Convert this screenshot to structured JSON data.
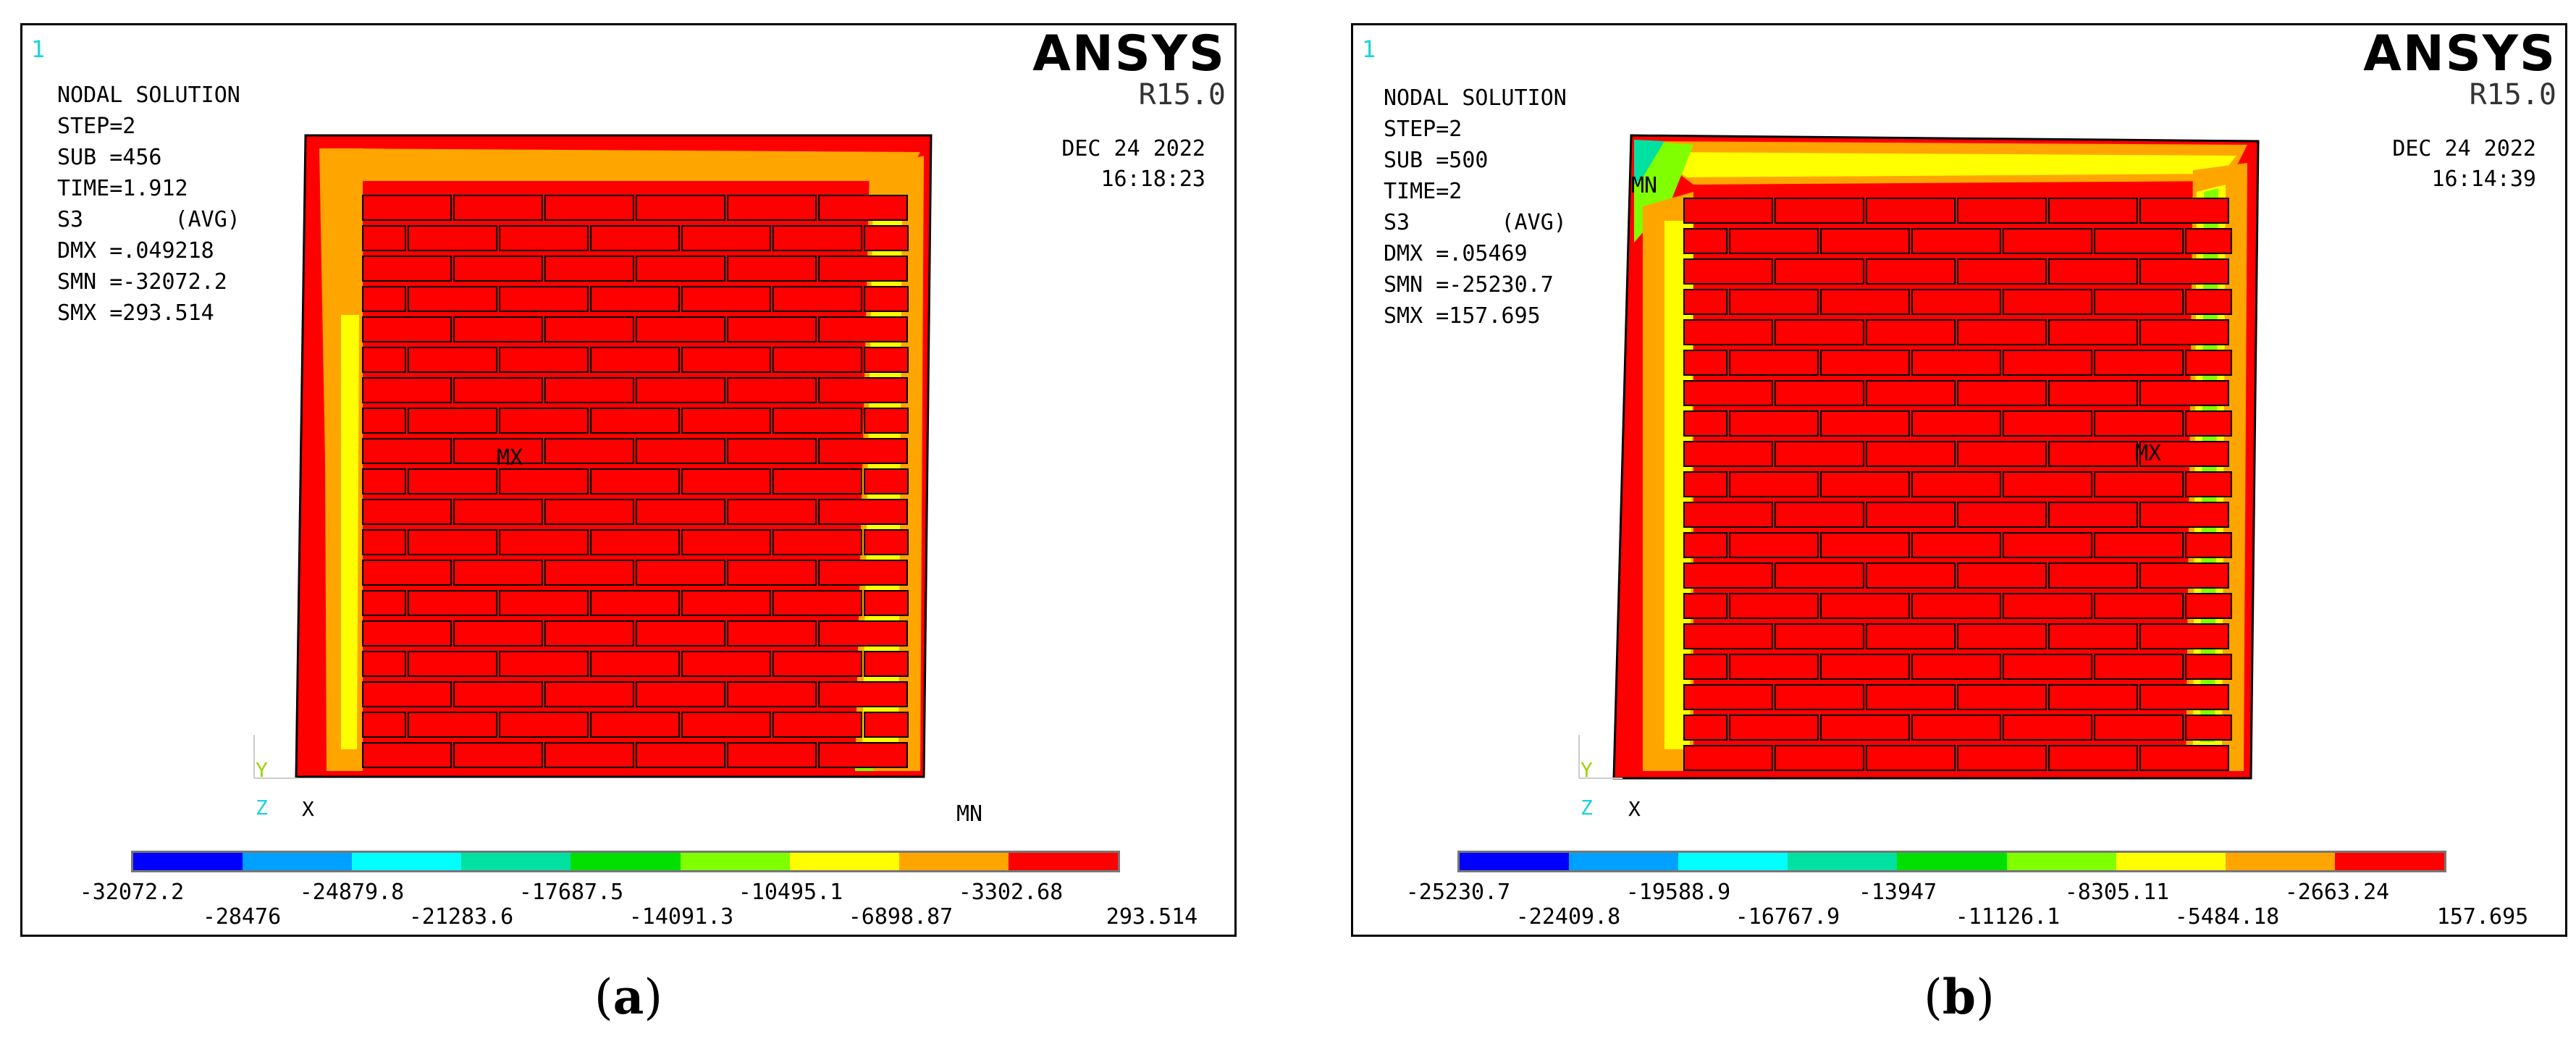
{
  "panels": [
    {
      "id": "a",
      "window_number": "1",
      "title": "NODAL SOLUTION",
      "step": "STEP=2",
      "sub": "SUB =456",
      "time": "TIME=1.912",
      "s3": "S3       (AVG)",
      "dmx": "DMX =.049218",
      "smn": "SMN =-32072.2",
      "smx": "SMX =293.514",
      "date": "DEC 24 2022",
      "clock": "16:18:23",
      "logo": "ANSYS",
      "release": "R15.0",
      "mx_label": "MX",
      "mn_label": "MN",
      "triad_y": "Y",
      "triad_z": "Z",
      "triad_x": "X",
      "legend_top": [
        "-32072.2",
        "-24879.8",
        "-17687.5",
        "-10495.1",
        "-3302.68"
      ],
      "legend_bottom": [
        "-28476",
        "-21283.6",
        "-14091.3",
        "-6898.87",
        "293.514"
      ],
      "caption": "a"
    },
    {
      "id": "b",
      "window_number": "1",
      "title": "NODAL SOLUTION",
      "step": "STEP=2",
      "sub": "SUB =500",
      "time": "TIME=2",
      "s3": "S3       (AVG)",
      "dmx": "DMX =.05469",
      "smn": "SMN =-25230.7",
      "smx": "SMX =157.695",
      "date": "DEC 24 2022",
      "clock": "16:14:39",
      "logo": "ANSYS",
      "release": "R15.0",
      "mx_label": "MX",
      "mn_label": "MN",
      "triad_y": "Y",
      "triad_z": "Z",
      "triad_x": "X",
      "legend_top": [
        "-25230.7",
        "-19588.9",
        "-13947",
        "-8305.11",
        "-2663.24"
      ],
      "legend_bottom": [
        "-22409.8",
        "-16767.9",
        "-11126.1",
        "-5484.18",
        "157.695"
      ],
      "caption": "b"
    }
  ],
  "colors": {
    "contour_bands": [
      "#0000ff",
      "#00a0ff",
      "#00ffff",
      "#00e0a0",
      "#00e000",
      "#80ff00",
      "#ffff00",
      "#ffa500",
      "#ff0000"
    ],
    "mortar_orange": "#ffa500",
    "mortar_yellow": "#ffff00",
    "brick_red": "#ff0000",
    "window_number": "#17d4e0"
  }
}
